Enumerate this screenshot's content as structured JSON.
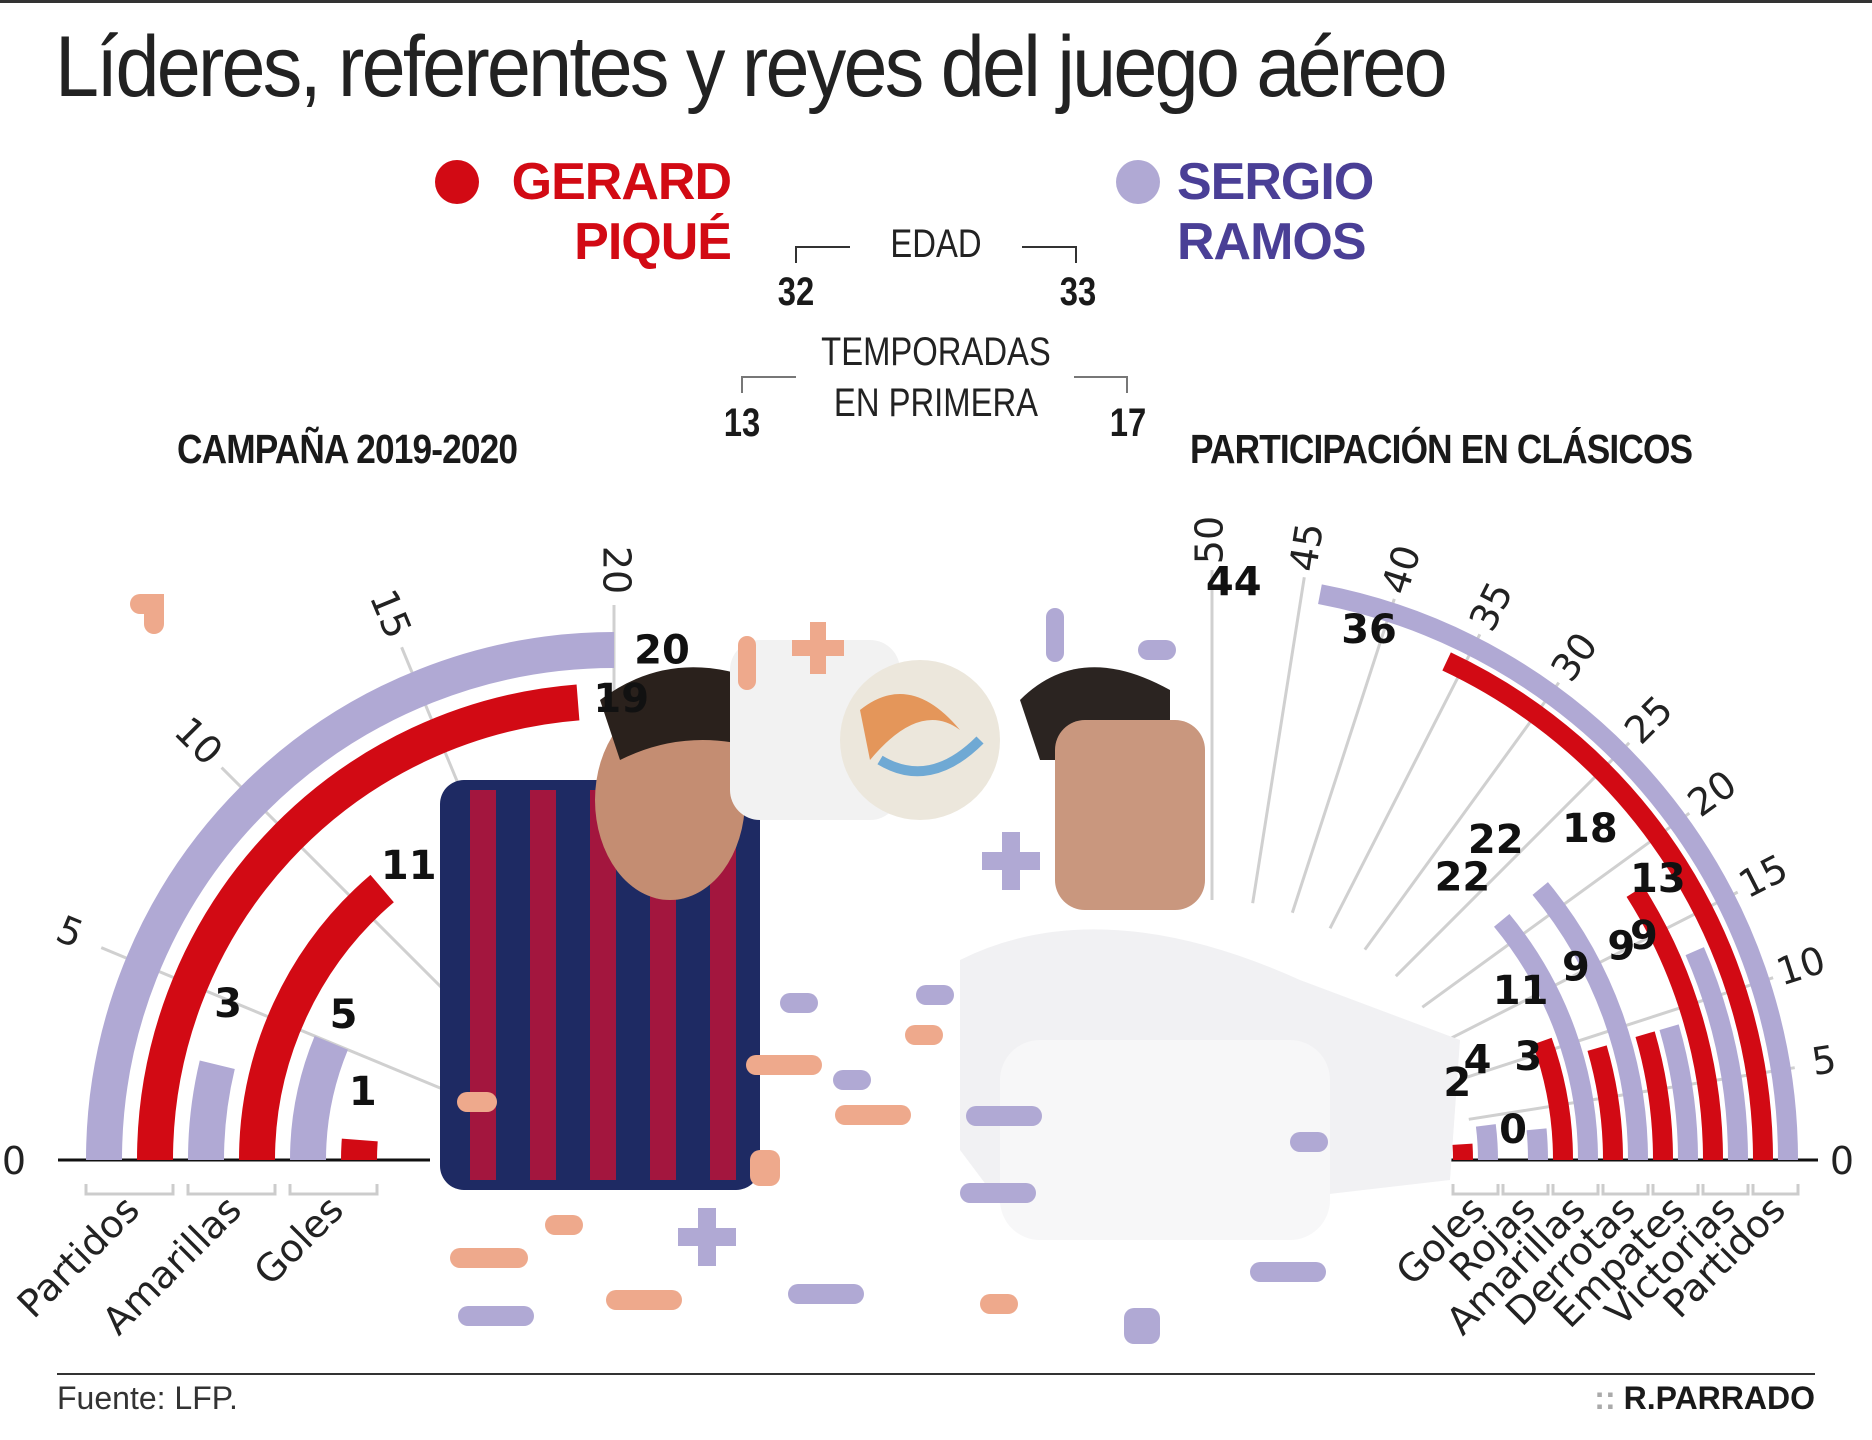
{
  "title": "Líderes, referentes y reyes del juego aéreo",
  "players": [
    {
      "line1": "GERARD",
      "line2": "PIQUÉ",
      "color": "#d20a14"
    },
    {
      "line1": "SERGIO",
      "line2": "RAMOS",
      "color": "#b0a9d4",
      "text_color": "#4a3f96"
    }
  ],
  "stats": {
    "edad": {
      "label": "EDAD",
      "pique": "32",
      "ramos": "33"
    },
    "temporadas": {
      "label_1": "TEMPORADAS",
      "label_2": "EN PRIMERA",
      "pique": "13",
      "ramos": "17"
    }
  },
  "sections": {
    "left": "CAMPAÑA 2019-2020",
    "right": "PARTICIPACIÓN EN CLÁSICOS"
  },
  "footer": {
    "source": "Fuente: LFP.",
    "credit": "R.PARRADO",
    "credit_prefix": "::"
  },
  "chart_data": [
    {
      "type": "radial-bar",
      "title": "CAMPAÑA 2019-2020",
      "categories": [
        "Partidos",
        "Amarillas",
        "Goles"
      ],
      "series": [
        {
          "name": "GERARD PIQUÉ",
          "color": "#d20a14",
          "values": [
            19,
            11,
            1
          ]
        },
        {
          "name": "SERGIO RAMOS",
          "color": "#b0a9d4",
          "values": [
            20,
            3,
            5
          ]
        }
      ],
      "axis": {
        "range": [
          0,
          20
        ],
        "ticks": [
          0,
          5,
          10,
          15,
          20
        ]
      },
      "grid": true
    },
    {
      "type": "radial-bar",
      "title": "PARTICIPACIÓN EN CLÁSICOS",
      "categories": [
        "Goles",
        "Rojas",
        "Amarillas",
        "Derrotas",
        "Empates",
        "Victorias",
        "Partidos"
      ],
      "series": [
        {
          "name": "GERARD PIQUÉ",
          "color": "#d20a14",
          "values": [
            2,
            0,
            11,
            9,
            9,
            18,
            36
          ]
        },
        {
          "name": "SERGIO RAMOS",
          "color": "#b0a9d4",
          "values": [
            4,
            3,
            22,
            22,
            9,
            13,
            44
          ]
        }
      ],
      "axis": {
        "range": [
          0,
          50
        ],
        "ticks": [
          0,
          5,
          10,
          15,
          20,
          25,
          30,
          35,
          40,
          45,
          50
        ]
      },
      "grid": true
    }
  ]
}
